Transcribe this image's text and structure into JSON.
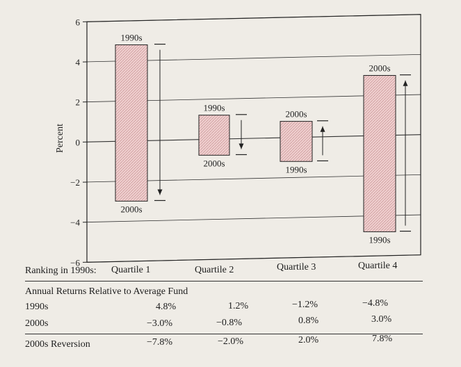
{
  "chart_data": {
    "type": "floating-bar",
    "ylabel": "Percent",
    "ylim": [
      -6,
      6
    ],
    "yticks": [
      6,
      4,
      2,
      0,
      -2,
      -4,
      -6
    ],
    "ytick_labels": [
      "6",
      "4",
      "2",
      "0",
      "−2",
      "−4",
      "−6"
    ],
    "grid": true,
    "categories": [
      "Quartile 1",
      "Quartile 2",
      "Quartile 3",
      "Quartile 4"
    ],
    "series": [
      {
        "name": "1990s",
        "values": [
          4.8,
          1.2,
          -1.2,
          -4.8
        ]
      },
      {
        "name": "2000s",
        "values": [
          -3.0,
          -0.8,
          0.8,
          3.0
        ]
      }
    ],
    "bars": [
      {
        "category": "Quartile 1",
        "top": 4.8,
        "bottom": -3.0,
        "top_label": "1990s",
        "bottom_label": "2000s",
        "arrow": "down"
      },
      {
        "category": "Quartile 2",
        "top": 1.2,
        "bottom": -0.8,
        "top_label": "1990s",
        "bottom_label": "2000s",
        "arrow": "down"
      },
      {
        "category": "Quartile 3",
        "top": 0.8,
        "bottom": -1.2,
        "top_label": "2000s",
        "bottom_label": "1990s",
        "arrow": "up"
      },
      {
        "category": "Quartile 4",
        "top": 3.0,
        "bottom": -4.8,
        "top_label": "2000s",
        "bottom_label": "1990s",
        "arrow": "up"
      }
    ],
    "bar_color": "#e8c4c4",
    "bar_hatch_color": "#c99a9a"
  },
  "table": {
    "ranking_label": "Ranking in 1990s:",
    "quartiles": [
      "Quartile 1",
      "Quartile 2",
      "Quartile 3",
      "Quartile 4"
    ],
    "section_title": "Annual Returns Relative to Average Fund",
    "rows": [
      {
        "label": "1990s",
        "values": [
          "4.8%",
          "1.2%",
          "−1.2%",
          "−4.8%"
        ]
      },
      {
        "label": "2000s",
        "values": [
          "−3.0%",
          "−0.8%",
          "0.8%",
          "3.0%"
        ]
      }
    ],
    "reversion": {
      "label": "2000s Reversion",
      "values": [
        "−7.8%",
        "−2.0%",
        "2.0%",
        "7.8%"
      ]
    }
  }
}
